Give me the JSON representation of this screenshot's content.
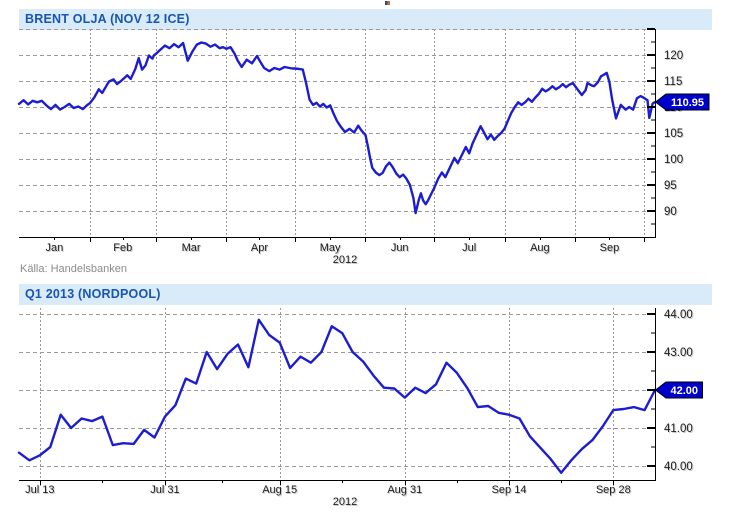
{
  "source_note": "Källa: Handelsbanken",
  "colors": {
    "header_bg": "#d9eaf9",
    "header_text": "#1856b0",
    "grid": "#9a9a9a",
    "axis": "#000000",
    "value_box_bg": "#0000cc",
    "value_box_text": "#ffffff",
    "artifact": [
      "#3a4a7a",
      "#c0703a"
    ]
  },
  "chart_data": [
    {
      "type": "line",
      "title": "BRENT OLJA (NOV 12 ICE)",
      "line_color": "#1d1dd0",
      "last_value": {
        "value": 110.95,
        "label": "110.95"
      },
      "x_axis": {
        "unit": "day of year 2012",
        "range": [
          1,
          280
        ],
        "gridlines": [
          32,
          61,
          92,
          122,
          153,
          183,
          214,
          245,
          275
        ],
        "minor_ticks": [
          16.5,
          46.5,
          76.5,
          106.5,
          137.5,
          168,
          198.5,
          229.5,
          260
        ],
        "tick_labels": [
          {
            "pos": 16.5,
            "label": "Jan"
          },
          {
            "pos": 46.5,
            "label": "Feb"
          },
          {
            "pos": 76.5,
            "label": "Mar"
          },
          {
            "pos": 106.5,
            "label": "Apr"
          },
          {
            "pos": 137.5,
            "label": "May"
          },
          {
            "pos": 168,
            "label": "Jun"
          },
          {
            "pos": 198.5,
            "label": "Jul"
          },
          {
            "pos": 229.5,
            "label": "Aug"
          },
          {
            "pos": 260,
            "label": "Sep"
          }
        ],
        "year_label": "2012"
      },
      "y_axis": {
        "range": [
          85,
          125
        ],
        "major_ticks": [
          90,
          95,
          100,
          105,
          110,
          115,
          120,
          125
        ],
        "minor_ticks": [
          87.5,
          92.5,
          97.5,
          102.5,
          107.5,
          112.5,
          117.5,
          122.5
        ],
        "tick_labels": [
          {
            "pos": 90,
            "label": "90"
          },
          {
            "pos": 95,
            "label": "95"
          },
          {
            "pos": 100,
            "label": "100"
          },
          {
            "pos": 105,
            "label": "105"
          },
          {
            "pos": 110,
            "label": "110"
          },
          {
            "pos": 115,
            "label": "115"
          },
          {
            "pos": 120,
            "label": "120"
          }
        ]
      },
      "series": [
        {
          "name": "Brent olja (Nov 12 ICE)",
          "x": [
            1,
            3,
            5,
            7,
            9,
            11,
            13,
            15,
            17,
            19,
            21,
            23,
            25,
            27,
            29,
            31,
            32,
            34,
            36,
            37.5,
            39,
            40.5,
            42.5,
            44,
            45.5,
            47,
            48.5,
            50,
            52,
            53.5,
            55,
            56.5,
            58,
            59.5,
            60.3,
            61,
            63,
            65,
            67,
            69,
            71,
            73,
            75,
            77,
            79,
            81,
            83,
            85,
            87,
            89,
            90.5,
            92,
            93.8,
            95.5,
            97,
            98.7,
            100.9,
            103.2,
            105.4,
            107,
            108.5,
            110.8,
            113,
            115.3,
            117.5,
            119.7,
            121,
            122,
            124,
            125.5,
            127,
            128.5,
            130,
            131.5,
            133,
            134.5,
            136,
            137.5,
            139,
            140.5,
            142,
            144,
            146,
            148,
            149.8,
            151.2,
            153,
            154,
            155,
            156,
            157.5,
            159,
            160.5,
            162,
            163.5,
            165,
            166.5,
            168,
            169.5,
            171,
            172.5,
            174,
            175,
            176.3,
            177.3,
            178.3,
            179.4,
            180.5,
            181.5,
            183,
            185,
            186.5,
            188,
            190,
            192,
            193.5,
            195,
            197,
            198.5,
            200,
            202,
            203.5,
            205,
            206.5,
            208,
            209.5,
            211,
            212.5,
            214,
            215.5,
            217,
            218.5,
            220,
            221.5,
            223,
            224.5,
            226,
            227.5,
            229,
            230.5,
            232,
            233.5,
            235,
            236.5,
            238,
            239.5,
            241,
            242.5,
            244,
            246,
            247.9,
            249.5,
            250.4,
            252,
            253.3,
            255,
            256.3,
            257.5,
            258.8,
            260,
            261.2,
            262.9,
            265,
            267.1,
            268.7,
            270.4,
            272.1,
            273.7,
            275.4,
            276.7,
            277.5,
            279,
            280
          ],
          "values": [
            110.6,
            111.3,
            110.5,
            111.2,
            110.9,
            111.2,
            110.3,
            109.6,
            110.4,
            109.5,
            110.0,
            110.6,
            109.8,
            110.1,
            109.6,
            110.4,
            110.7,
            111.8,
            113.4,
            112.7,
            113.8,
            114.9,
            115.3,
            114.4,
            114.9,
            115.5,
            116.1,
            115.4,
            117.3,
            119.4,
            117.2,
            118.0,
            119.9,
            119.3,
            120.0,
            120.2,
            121.0,
            121.8,
            121.3,
            122.1,
            121.5,
            122.3,
            118.9,
            120.6,
            122.0,
            122.4,
            122.2,
            121.6,
            122.0,
            121.3,
            121.5,
            121.2,
            121.5,
            120.3,
            118.9,
            117.7,
            119.1,
            118.4,
            119.8,
            118.6,
            117.5,
            116.9,
            117.5,
            117.2,
            117.7,
            117.5,
            117.4,
            117.4,
            117.3,
            117.2,
            114.5,
            111.4,
            110.4,
            110.8,
            110.1,
            110.6,
            109.9,
            110.3,
            108.7,
            107.3,
            106.3,
            105.2,
            105.8,
            105.1,
            106.4,
            105.5,
            104.6,
            102.5,
            100.2,
            98.3,
            97.4,
            96.9,
            97.3,
            98.6,
            99.3,
            98.4,
            97.2,
            96.5,
            97.0,
            96.2,
            95.0,
            92.5,
            89.6,
            92.0,
            93.4,
            92.0,
            91.3,
            92.1,
            93.0,
            94.3,
            96.3,
            97.4,
            96.5,
            98.3,
            100.2,
            99.2,
            100.5,
            102.3,
            101.1,
            103.0,
            104.9,
            106.3,
            105.1,
            103.8,
            104.7,
            103.7,
            104.4,
            105.0,
            105.8,
            107.4,
            108.9,
            110.0,
            110.9,
            110.4,
            110.9,
            111.6,
            111.0,
            111.8,
            112.5,
            113.5,
            113.0,
            113.4,
            114.0,
            113.4,
            113.8,
            114.4,
            113.8,
            114.3,
            114.6,
            113.4,
            112.3,
            113.2,
            114.6,
            114.2,
            114.0,
            114.8,
            115.9,
            116.2,
            116.55,
            114.8,
            111.5,
            107.8,
            110.4,
            109.5,
            110.0,
            109.5,
            111.7,
            112.1,
            111.7,
            111.3,
            107.9,
            110.7,
            110.95
          ]
        }
      ]
    },
    {
      "type": "line",
      "title": "Q1 2013 (NORDPOOL)",
      "line_color": "#1d1dd0",
      "last_value": {
        "value": 42.0,
        "label": "42.00"
      },
      "x_axis": {
        "unit": "trading day, Jul 11 - Oct 4 2012",
        "range": [
          0,
          61
        ],
        "gridlines": [
          2,
          14,
          25,
          37,
          47,
          57
        ],
        "minor_ticks": [
          8,
          19.5,
          31,
          42,
          52
        ],
        "tick_labels": [
          {
            "pos": 2,
            "label": "Jul 13"
          },
          {
            "pos": 14,
            "label": "Jul 31"
          },
          {
            "pos": 25,
            "label": "Aug 15"
          },
          {
            "pos": 37,
            "label": "Aug 31"
          },
          {
            "pos": 47,
            "label": "Sep 14"
          },
          {
            "pos": 57,
            "label": "Sep 28"
          }
        ],
        "year_label": "2012"
      },
      "y_axis": {
        "range": [
          39.63,
          44.16
        ],
        "major_ticks": [
          40,
          41,
          42,
          43,
          44
        ],
        "minor_ticks": [
          40.5,
          41.5,
          42.5,
          43.5
        ],
        "tick_labels": [
          {
            "pos": 40,
            "label": "40.00"
          },
          {
            "pos": 41,
            "label": "41.00"
          },
          {
            "pos": 42,
            "label": "42.00"
          },
          {
            "pos": 43,
            "label": "43.00"
          },
          {
            "pos": 44,
            "label": "44.00"
          }
        ]
      },
      "series": [
        {
          "name": "Nordpool Q1 2013",
          "x": [
            0,
            1,
            2,
            3,
            4,
            5,
            6,
            7,
            8,
            9,
            10,
            11,
            12,
            13,
            14,
            15,
            16,
            17,
            18,
            19,
            20,
            21,
            22,
            23,
            24,
            25,
            26,
            27,
            28,
            29,
            30,
            31,
            32,
            33,
            34,
            35,
            36,
            37,
            38,
            39,
            40,
            41,
            42,
            43,
            44,
            45,
            46,
            47,
            48,
            49,
            50,
            51,
            52,
            53,
            54,
            55,
            56,
            57,
            58,
            59,
            60,
            61
          ],
          "values": [
            40.35,
            40.15,
            40.28,
            40.5,
            41.35,
            41.0,
            41.25,
            41.18,
            41.3,
            40.55,
            40.6,
            40.58,
            40.95,
            40.75,
            41.3,
            41.6,
            42.3,
            42.17,
            43.0,
            42.55,
            42.95,
            43.2,
            42.6,
            43.85,
            43.45,
            43.25,
            42.58,
            42.88,
            42.72,
            43.0,
            43.68,
            43.5,
            43.0,
            42.75,
            42.38,
            42.06,
            42.04,
            41.8,
            42.06,
            41.92,
            42.15,
            42.72,
            42.45,
            42.05,
            41.55,
            41.58,
            41.4,
            41.35,
            41.25,
            40.78,
            40.48,
            40.18,
            39.82,
            40.16,
            40.45,
            40.68,
            41.05,
            41.47,
            41.5,
            41.55,
            41.47,
            42.0
          ]
        }
      ]
    }
  ]
}
